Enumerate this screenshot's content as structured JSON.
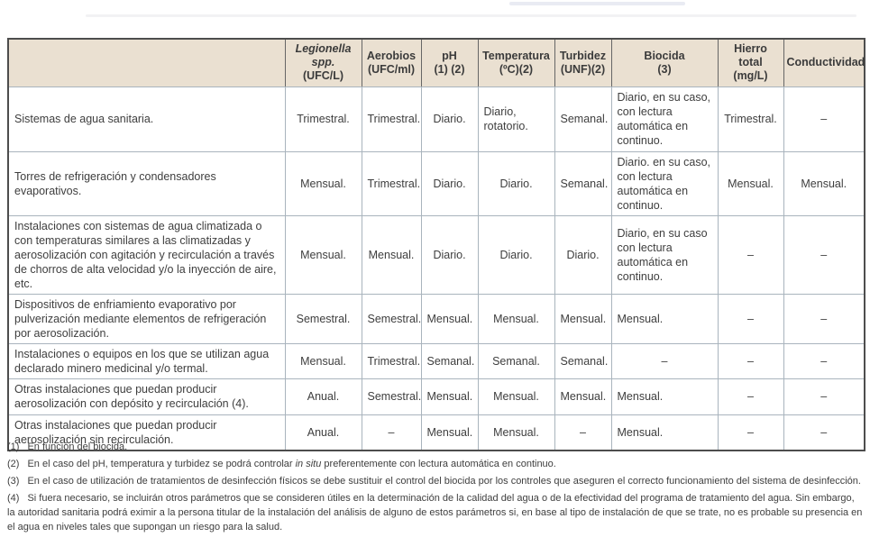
{
  "table": {
    "columns": [
      {
        "id": "installation",
        "lines": []
      },
      {
        "id": "legionella",
        "lines": [
          {
            "text": "Legionella",
            "italic": true
          },
          {
            "text": "spp.",
            "italic": true
          },
          {
            "text": "(UFC/L)",
            "italic": false
          }
        ]
      },
      {
        "id": "aerobios",
        "lines": [
          {
            "text": "Aerobios",
            "italic": false
          },
          {
            "text": "(UFC/ml)",
            "italic": false
          }
        ]
      },
      {
        "id": "ph",
        "lines": [
          {
            "text": "pH",
            "italic": false
          },
          {
            "text": "(1) (2)",
            "italic": false
          }
        ]
      },
      {
        "id": "temperatura",
        "lines": [
          {
            "text": "Temperatura",
            "italic": false
          },
          {
            "text": "(ºC)(2)",
            "italic": false
          }
        ]
      },
      {
        "id": "turbidez",
        "lines": [
          {
            "text": "Turbidez",
            "italic": false
          },
          {
            "text": "(UNF)(2)",
            "italic": false
          }
        ]
      },
      {
        "id": "biocida",
        "lines": [
          {
            "text": "Biocida",
            "italic": false
          },
          {
            "text": "(3)",
            "italic": false
          }
        ]
      },
      {
        "id": "hierro-total",
        "lines": [
          {
            "text": "Hierro",
            "italic": false
          },
          {
            "text": "total",
            "italic": false
          },
          {
            "text": "(mg/L)",
            "italic": false
          }
        ]
      },
      {
        "id": "conductividad",
        "lines": [
          {
            "text": "Conductividad",
            "italic": false
          }
        ]
      }
    ],
    "rows": [
      {
        "label": "Sistemas de agua sanitaria.",
        "cells": [
          "Trimestral.",
          "Trimestral.",
          "Diario.",
          "Diario, rotatorio.",
          "Semanal.",
          "Diario, en su caso, con lectura automática en continuo.",
          "Trimestral.",
          "–"
        ]
      },
      {
        "label": "Torres de refrigeración y condensadores evaporativos.",
        "cells": [
          "Mensual.",
          "Trimestral.",
          "Diario.",
          "Diario.",
          "Semanal.",
          "Diario. en su caso, con lectura automática en continuo.",
          "Mensual.",
          "Mensual."
        ]
      },
      {
        "label": "Instalaciones con sistemas de agua climatizada o con temperaturas similares a las climatizadas y aerosolización con agitación y recirculación a través de chorros de alta velocidad y/o la inyección de aire, etc.",
        "cells": [
          "Mensual.",
          "Mensual.",
          "Diario.",
          "Diario.",
          "Diario.",
          "Diario, en su caso con lectura automática en continuo.",
          "–",
          "–"
        ]
      },
      {
        "label": "Dispositivos de enfriamiento evaporativo por pulverización mediante elementos de refrigeración por aerosolización.",
        "cells": [
          "Semestral.",
          "Semestral.",
          "Mensual.",
          "Mensual.",
          "Mensual.",
          "Mensual.",
          "–",
          "–"
        ]
      },
      {
        "label": "Instalaciones o equipos en los que se utilizan agua declarado minero medicinal y/o termal.",
        "cells": [
          "Mensual.",
          "Trimestral.",
          "Semanal.",
          "Semanal.",
          "Semanal.",
          "–",
          "–",
          "–"
        ]
      },
      {
        "label": "Otras instalaciones que puedan producir aerosolización con depósito y recirculación (4).",
        "cells": [
          "Anual.",
          "Semestral.",
          "Mensual.",
          "Mensual.",
          "Mensual.",
          "Mensual.",
          "–",
          "–"
        ]
      },
      {
        "label": "Otras instalaciones que puedan producir aerosolización sin recirculación.",
        "cells": [
          "Anual.",
          "–",
          "Mensual.",
          "Mensual.",
          "–",
          "Mensual.",
          "–",
          "–"
        ]
      }
    ]
  },
  "footnotes": [
    {
      "num": "(1)",
      "parts": [
        {
          "text": "En función del biocida."
        }
      ]
    },
    {
      "num": "(2)",
      "parts": [
        {
          "text": "En el caso del pH, temperatura y turbidez se podrá controlar "
        },
        {
          "text": "in situ",
          "italic": true
        },
        {
          "text": " preferentemente con lectura automática en continuo."
        }
      ]
    },
    {
      "num": "(3)",
      "parts": [
        {
          "text": "En el caso de utilización de tratamientos de desinfección físicos se debe sustituir el control del biocida por los controles que aseguren el correcto funcionamiento del sistema de desinfección."
        }
      ]
    },
    {
      "num": "(4)",
      "parts": [
        {
          "text": "Si fuera necesario, se incluirán otros parámetros que se consideren útiles en la determinación de la calidad del agua o de la efectividad del programa de tratamiento del agua. Sin embargo, la autoridad sanitaria podrá eximir a la persona titular de la instalación del análisis de alguno de estos parámetros si, en base al tipo de instalación de que se trate, no es probable su presencia en el agua en niveles tales que supongan un riesgo para la salud."
        }
      ]
    }
  ],
  "colors": {
    "header_background": "#eae0d1",
    "outer_border": "#4d4d4d",
    "header_divider": "#666666",
    "grid_line": "#a9b4bd",
    "text": "#3e3e3e"
  }
}
